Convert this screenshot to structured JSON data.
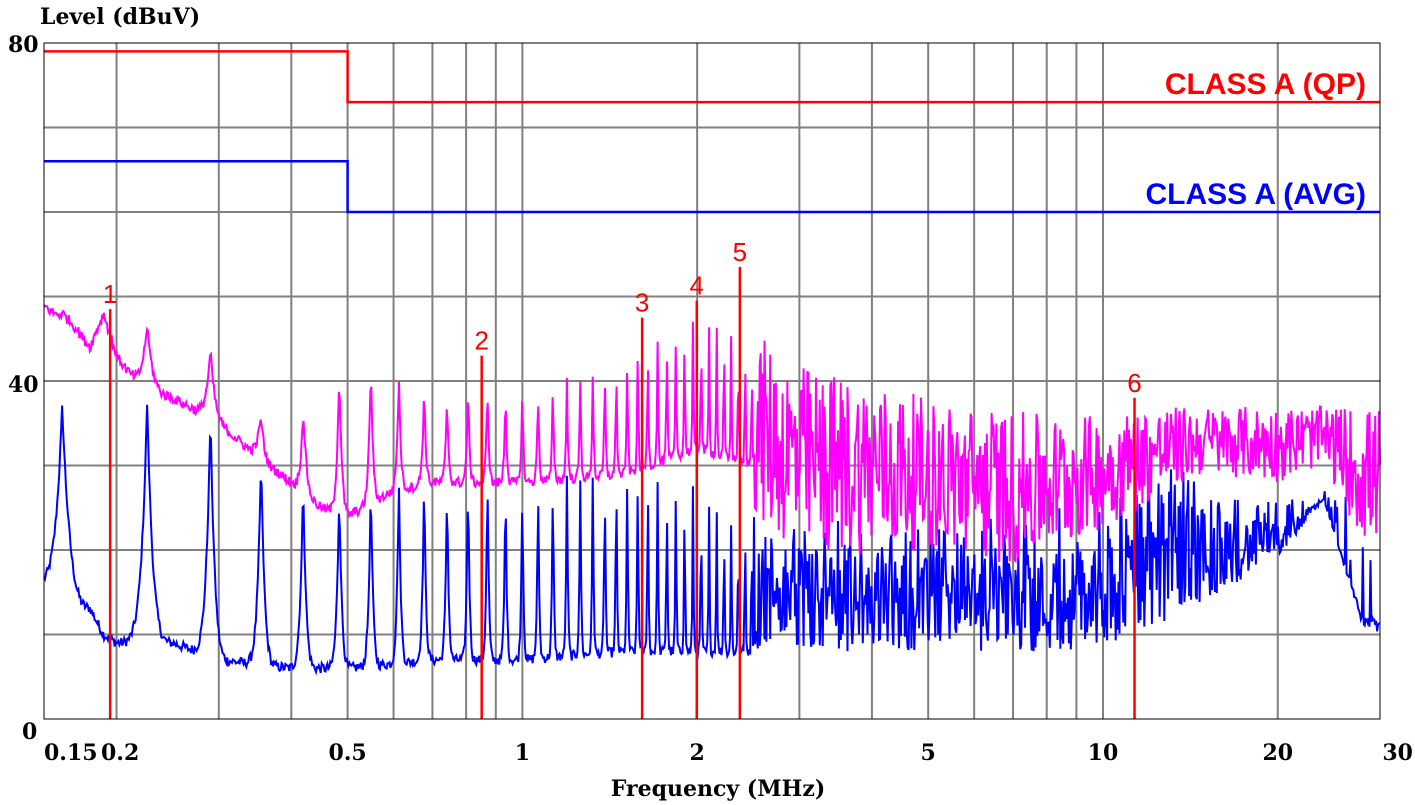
{
  "chart_data": {
    "type": "line",
    "xlabel": "Frequency (MHz)",
    "ylabel": "Level (dBuV)",
    "x_scale": "log",
    "xlim": [
      0.15,
      30
    ],
    "ylim": [
      0,
      80
    ],
    "grid": true,
    "y_ticks": [
      {
        "value": 0,
        "label": "0"
      },
      {
        "value": 40,
        "label": "40"
      },
      {
        "value": 80,
        "label": "80"
      }
    ],
    "x_ticks": [
      {
        "value": 0.15,
        "label": "0.15"
      },
      {
        "value": 0.2,
        "label": "0.2"
      },
      {
        "value": 0.5,
        "label": "0.5"
      },
      {
        "value": 1,
        "label": "1"
      },
      {
        "value": 2,
        "label": "2"
      },
      {
        "value": 5,
        "label": "5"
      },
      {
        "value": 10,
        "label": "10"
      },
      {
        "value": 20,
        "label": "20"
      },
      {
        "value": 30,
        "label": "30"
      }
    ],
    "limit_lines": [
      {
        "name": "CLASS A (QP)",
        "color": "#ff0000",
        "points": [
          [
            0.15,
            79
          ],
          [
            0.5,
            79
          ],
          [
            0.5,
            73
          ],
          [
            30,
            73
          ]
        ]
      },
      {
        "name": "CLASS A (AVG)",
        "color": "#0000ff",
        "points": [
          [
            0.15,
            66
          ],
          [
            0.5,
            66
          ],
          [
            0.5,
            60
          ],
          [
            30,
            60
          ]
        ]
      }
    ],
    "series": [
      {
        "color": "#ff00ff",
        "envelope": [
          [
            0.15,
            49
          ],
          [
            0.17,
            46
          ],
          [
            0.18,
            44
          ],
          [
            0.19,
            48
          ],
          [
            0.2,
            43
          ],
          [
            0.22,
            39
          ],
          [
            0.25,
            38
          ],
          [
            0.3,
            35
          ],
          [
            0.35,
            31
          ],
          [
            0.4,
            28
          ],
          [
            0.45,
            25
          ],
          [
            0.5,
            24
          ],
          [
            0.6,
            27
          ],
          [
            0.7,
            28
          ],
          [
            0.85,
            28
          ],
          [
            1,
            28
          ],
          [
            1.5,
            29
          ],
          [
            2,
            32
          ],
          [
            2.5,
            30
          ],
          [
            3,
            28
          ],
          [
            5,
            29
          ],
          [
            8,
            30
          ],
          [
            10,
            32
          ],
          [
            13,
            36
          ],
          [
            15,
            34
          ],
          [
            20,
            29
          ],
          [
            24,
            32
          ],
          [
            28,
            21
          ],
          [
            30,
            21
          ]
        ],
        "peaks": [
          [
            0.19,
            48
          ],
          [
            0.27,
            45
          ],
          [
            0.33,
            41
          ],
          [
            0.38,
            31
          ],
          [
            0.45,
            41
          ],
          [
            0.55,
            42
          ],
          [
            0.65,
            40
          ],
          [
            0.75,
            38
          ],
          [
            0.85,
            40
          ],
          [
            1.0,
            39
          ],
          [
            1.25,
            41
          ],
          [
            1.6,
            45
          ],
          [
            2.0,
            49
          ],
          [
            2.3,
            51
          ],
          [
            2.6,
            45
          ],
          [
            3,
            42
          ],
          [
            4,
            40
          ],
          [
            5,
            38
          ],
          [
            6,
            37
          ],
          [
            8,
            36
          ],
          [
            10,
            36
          ],
          [
            12,
            37
          ],
          [
            13,
            37
          ]
        ],
        "ripple_bottom": [
          [
            0.4,
            28
          ],
          [
            1,
            28
          ],
          [
            2,
            26
          ],
          [
            2.5,
            24
          ],
          [
            3,
            19
          ],
          [
            5,
            20
          ],
          [
            7,
            18
          ],
          [
            9,
            21
          ],
          [
            11,
            24
          ],
          [
            13,
            27
          ],
          [
            15,
            29
          ],
          [
            20,
            28
          ],
          [
            24,
            30
          ],
          [
            28,
            21
          ]
        ]
      },
      {
        "color": "#0000ff",
        "envelope": [
          [
            0.15,
            15
          ],
          [
            0.16,
            12
          ],
          [
            0.18,
            13
          ],
          [
            0.19,
            10
          ],
          [
            0.2,
            9
          ],
          [
            0.25,
            9
          ],
          [
            0.3,
            7
          ],
          [
            0.4,
            6
          ],
          [
            0.5,
            6
          ],
          [
            0.7,
            7
          ],
          [
            1,
            7
          ],
          [
            1.5,
            8
          ],
          [
            2,
            8
          ],
          [
            3,
            8
          ],
          [
            5,
            8
          ],
          [
            10,
            8
          ],
          [
            15,
            14
          ],
          [
            20,
            19
          ],
          [
            24,
            26
          ],
          [
            28,
            11
          ],
          [
            30,
            10
          ]
        ],
        "peaks": [
          [
            0.19,
            37
          ],
          [
            0.27,
            38
          ],
          [
            0.33,
            32
          ],
          [
            0.45,
            27
          ],
          [
            0.55,
            28
          ],
          [
            0.65,
            29
          ],
          [
            0.75,
            28
          ],
          [
            0.85,
            30
          ],
          [
            1.0,
            28
          ],
          [
            1.25,
            30
          ],
          [
            1.6,
            31
          ],
          [
            2.0,
            29
          ],
          [
            2.5,
            28
          ],
          [
            3,
            24
          ],
          [
            5,
            23
          ],
          [
            8,
            25
          ],
          [
            10,
            25
          ],
          [
            13,
            32
          ],
          [
            16,
            26
          ],
          [
            20,
            26
          ],
          [
            24,
            27
          ]
        ],
        "ripple_top": [
          [
            2.5,
            22
          ],
          [
            3,
            20
          ],
          [
            5,
            19
          ],
          [
            8,
            20
          ],
          [
            10,
            21
          ],
          [
            13,
            27
          ],
          [
            15,
            25
          ],
          [
            20,
            23
          ],
          [
            24,
            26
          ],
          [
            28,
            12
          ]
        ]
      }
    ],
    "markers": [
      {
        "label": "1",
        "freq": 0.195,
        "level": 48.5
      },
      {
        "label": "2",
        "freq": 0.851,
        "level": 43
      },
      {
        "label": "3",
        "freq": 1.608,
        "level": 47.5
      },
      {
        "label": "4",
        "freq": 1.997,
        "level": 49.5
      },
      {
        "label": "5",
        "freq": 2.369,
        "level": 53.5
      },
      {
        "label": "6",
        "freq": 11.333,
        "level": 38
      }
    ]
  }
}
